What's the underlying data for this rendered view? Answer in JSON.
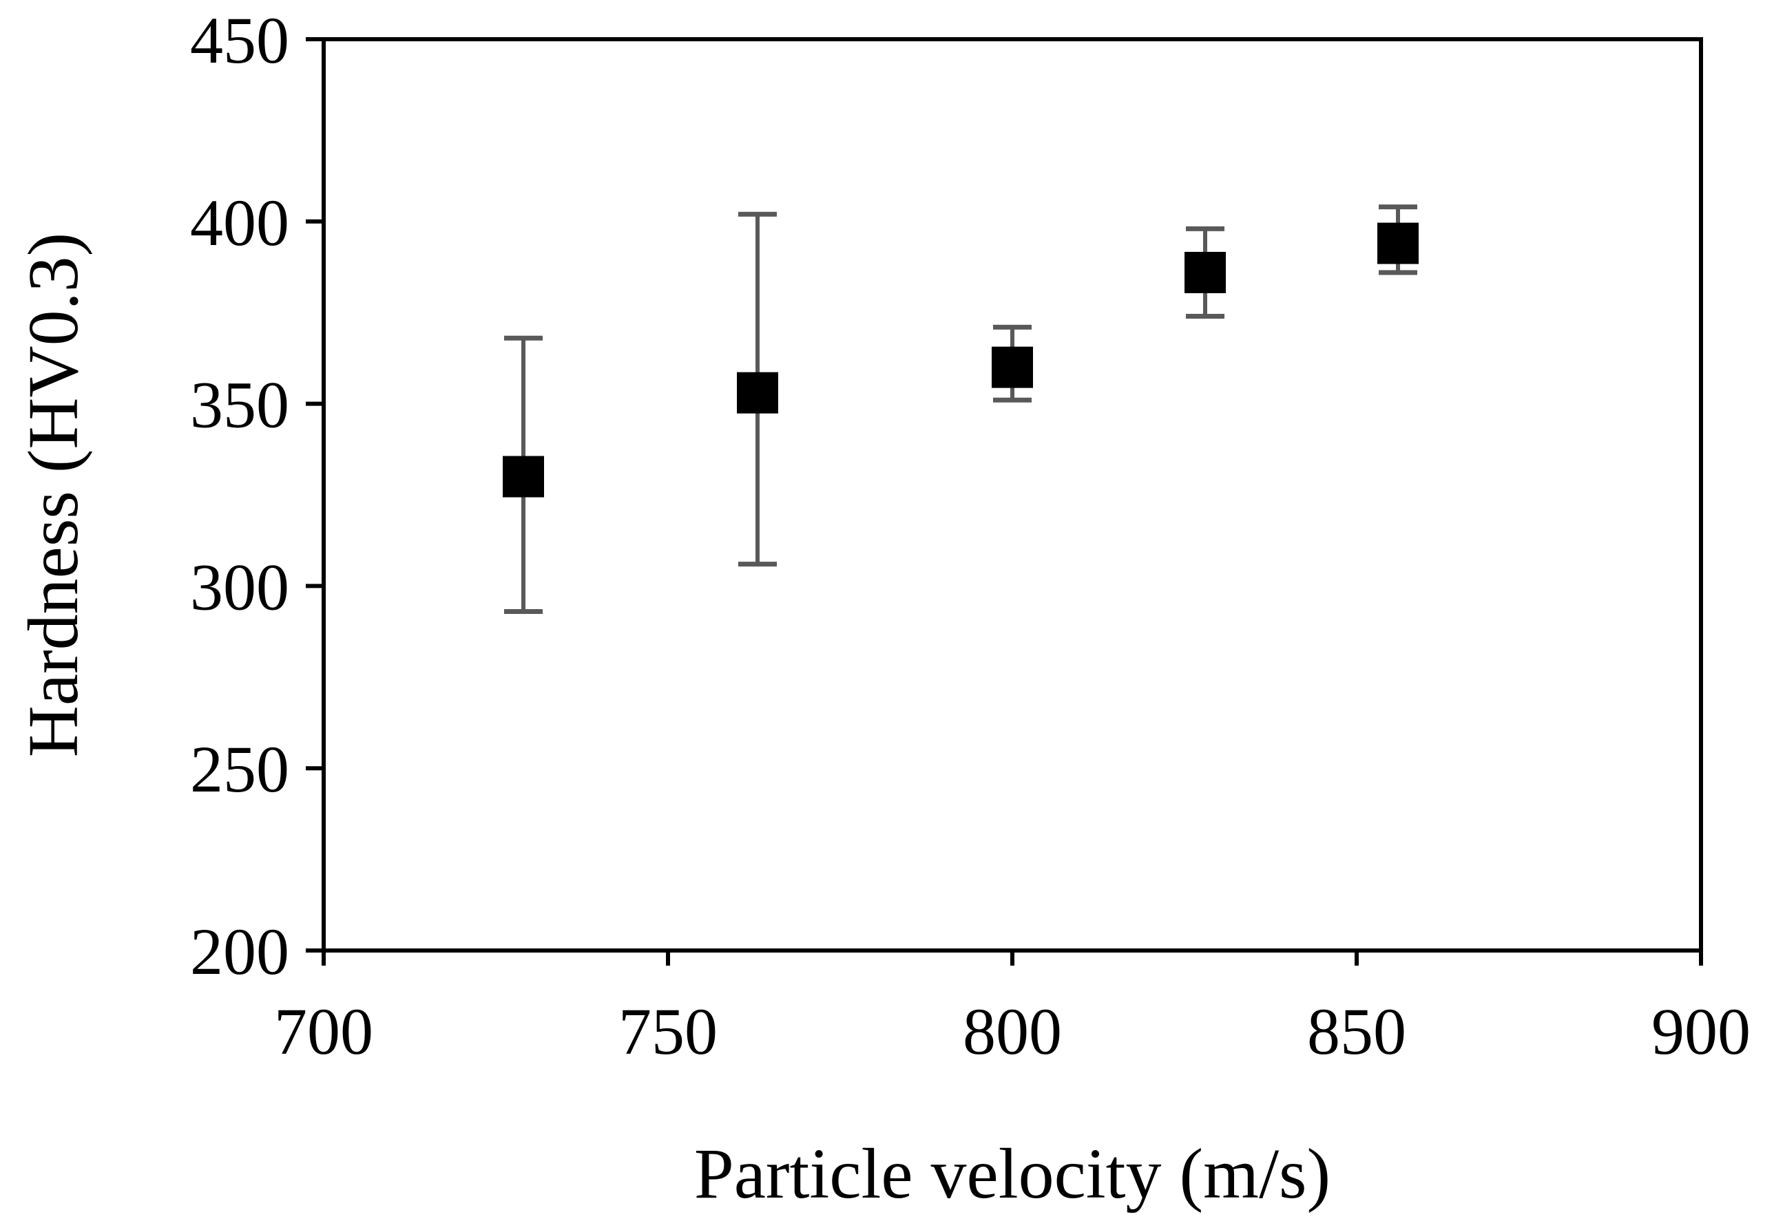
{
  "chart_data": {
    "type": "scatter",
    "title": "",
    "xlabel": "Particle velocity (m/s)",
    "ylabel": "Hardness (HV0.3)",
    "xlim": [
      700,
      900
    ],
    "ylim": [
      200,
      450
    ],
    "xticks": [
      700,
      750,
      800,
      850,
      900
    ],
    "yticks": [
      200,
      250,
      300,
      350,
      400,
      450
    ],
    "grid": false,
    "series": [
      {
        "name": "Hardness",
        "marker": "square",
        "color": "#000000",
        "errorbar_color": "#595959",
        "points": [
          {
            "x": 729,
            "y": 330,
            "err_low": 293,
            "err_high": 368
          },
          {
            "x": 763,
            "y": 353,
            "err_low": 306,
            "err_high": 402
          },
          {
            "x": 800,
            "y": 360,
            "err_low": 351,
            "err_high": 371
          },
          {
            "x": 828,
            "y": 386,
            "err_low": 374,
            "err_high": 398
          },
          {
            "x": 856,
            "y": 394,
            "err_low": 386,
            "err_high": 404
          }
        ]
      }
    ]
  }
}
